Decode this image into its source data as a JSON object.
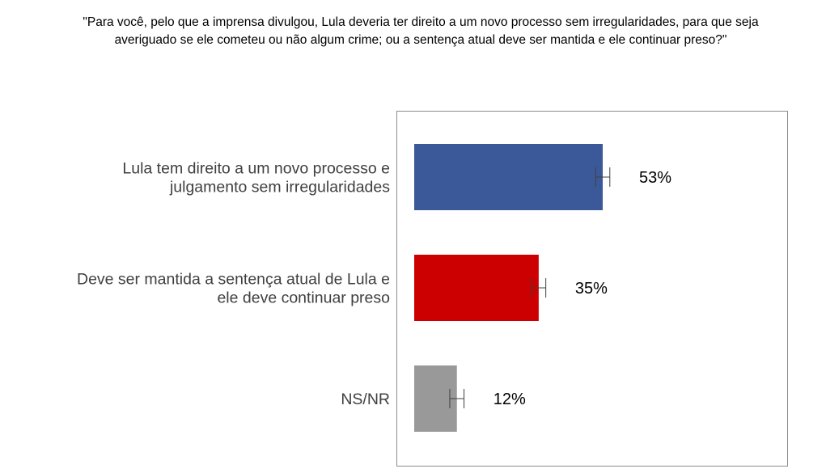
{
  "question": {
    "line1": "\"Para você, pelo que a imprensa divulgou, Lula deveria ter direito a um novo processo sem irregularidades, para que seja",
    "line2": "averiguado se ele cometeu ou não algum crime; ou a sentença atual deve ser mantida e ele continuar preso?\""
  },
  "chart_data": {
    "type": "bar",
    "orientation": "horizontal",
    "title": "\"Para você, pelo que a imprensa divulgou, Lula deveria ter direito a um novo processo sem irregularidades, para que seja averiguado se ele cometeu ou não algum crime; ou a sentença atual deve ser mantida e ele continuar preso?\"",
    "categories": [
      [
        "Lula tem direito a um novo processo e",
        "julgamento sem irregularidades"
      ],
      [
        "Deve ser mantida a sentença atual de Lula e",
        "ele deve continuar preso"
      ],
      [
        "NS/NR"
      ]
    ],
    "values": [
      53,
      35,
      12
    ],
    "value_labels": [
      "53%",
      "35%",
      "12%"
    ],
    "colors": [
      "#3B5998",
      "#CC0000",
      "#999999"
    ],
    "error_bars": true,
    "error_margin": 2,
    "xlim": [
      0,
      100
    ],
    "grid": false,
    "legend": "none",
    "xlabel": "",
    "ylabel": ""
  }
}
